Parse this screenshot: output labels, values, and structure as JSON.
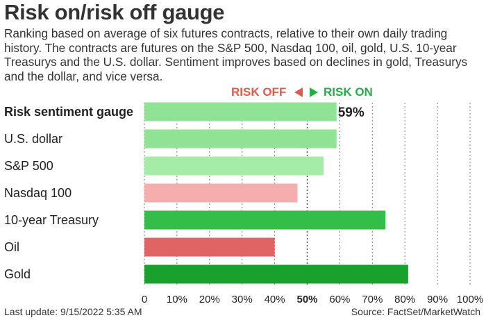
{
  "header": {
    "title": "Risk on/risk off gauge",
    "subtitle": "Ranking based on average of six futures contracts, relative to their own daily trading history. The contracts are futures on the S&P 500, Nasdaq 100, oil, gold, U.S. 10-year Treasurys and the U.S. dollar. Sentiment improves based on declines in gold, Treasurys and the dollar, and vice versa."
  },
  "legend": {
    "risk_off": "RISK OFF",
    "risk_on": "RISK ON",
    "risk_off_color": "#e05a4e",
    "risk_on_color": "#22b045"
  },
  "footer": {
    "last_update": "Last update: 9/15/2022 5:35 AM",
    "source": "Source: FactSet/MarketWatch"
  },
  "chart_data": {
    "type": "bar",
    "orientation": "horizontal",
    "categories": [
      "Risk sentiment gauge",
      "U.S. dollar",
      "S&P 500",
      "Nasdaq 100",
      "10-year Treasury",
      "Oil",
      "Gold"
    ],
    "values": [
      59,
      59,
      55,
      47,
      74,
      40,
      81
    ],
    "colors": [
      "#90e395",
      "#90e395",
      "#a5eda6",
      "#f5adad",
      "#34be49",
      "#e06464",
      "#1aa02c"
    ],
    "bold_categories": [
      "Risk sentiment gauge"
    ],
    "value_labels": {
      "Risk sentiment gauge": "59%"
    },
    "xlim": [
      0,
      100
    ],
    "ticks": [
      "0",
      "10%",
      "20%",
      "30%",
      "40%",
      "50%",
      "60%",
      "70%",
      "80%",
      "90%",
      "100%"
    ],
    "bold_ticks": [
      "50%"
    ],
    "grid": "dotted vertical",
    "midline": 50
  }
}
